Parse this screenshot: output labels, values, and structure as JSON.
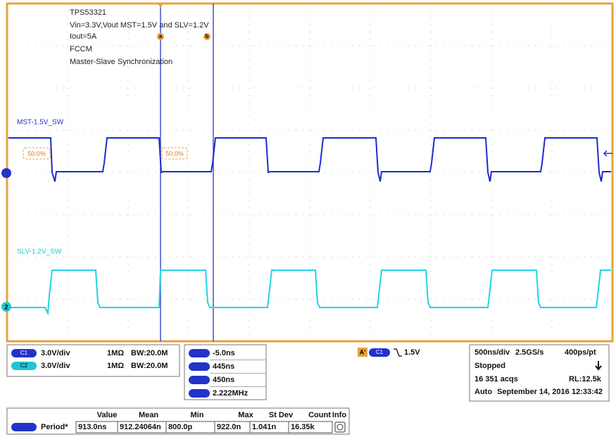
{
  "annotations": {
    "lines": [
      "TPS53321",
      "Vin=3.3V,Vout MST=1.5V and SLV=1.2V",
      "Iout=5A",
      "FCCM",
      "Master-Slave Synchronization"
    ],
    "cursor_a": "a",
    "cursor_b": "b"
  },
  "traces": {
    "ch1_label": "MST-1.5V_SW",
    "ch2_label": "SLV-1.2V_SW",
    "ch2_marker": "2",
    "level_left": "50.0%",
    "level_right": "50.0%"
  },
  "channels": [
    {
      "badge": "C1",
      "scale": "3.0V/div",
      "impedance": "1MΩ",
      "bandwidth": "BW:20.0M"
    },
    {
      "badge": "C2",
      "scale": "3.0V/div",
      "impedance": "1MΩ",
      "bandwidth": "BW:20.0M"
    }
  ],
  "cursors": [
    "-5.0ns",
    "445ns",
    "450ns",
    "2.222MHz"
  ],
  "trigger": {
    "badge": "A'",
    "source": "C1",
    "level": "1.5V"
  },
  "acquisition": {
    "timebase": "500ns/div",
    "sample_rate": "2.5GS/s",
    "resolution": "400ps/pt",
    "state": "Stopped",
    "acqs": "16 351 acqs",
    "record_length": "RL:12.5k",
    "mode": "Auto",
    "date": "September 14, 2016",
    "time": "12:33:42"
  },
  "measurements": {
    "headers": [
      "Value",
      "Mean",
      "Min",
      "Max",
      "St Dev",
      "Count",
      "Info"
    ],
    "rows": [
      {
        "name": "Period*",
        "cells": [
          "913.0ns",
          "912.24064n",
          "800.0p",
          "922.0n",
          "1.041n",
          "16.35k"
        ]
      }
    ]
  }
}
